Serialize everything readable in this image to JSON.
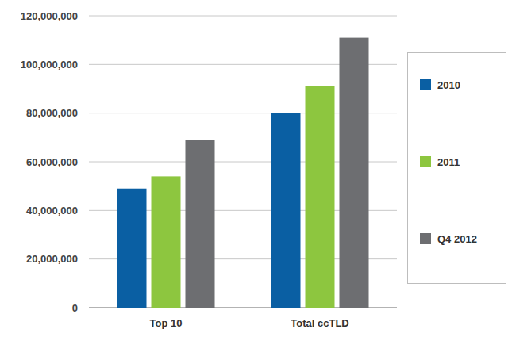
{
  "chart_data": {
    "type": "bar",
    "categories": [
      "Top 10",
      "Total ccTLD"
    ],
    "series": [
      {
        "name": "2010",
        "color": "#0a5fa3",
        "values": [
          49000000,
          80000000
        ]
      },
      {
        "name": "2011",
        "color": "#8dc63f",
        "values": [
          54000000,
          91000000
        ]
      },
      {
        "name": "Q4 2012",
        "color": "#6d6e71",
        "values": [
          69000000,
          111000000
        ]
      }
    ],
    "ylim": [
      0,
      120000000
    ],
    "yticks": [
      0,
      {
        "value": 20000000,
        "label": "20,000,000"
      },
      {
        "value": 40000000,
        "label": "40,000,000"
      },
      {
        "value": 60000000,
        "label": "60,000,000"
      },
      {
        "value": 80000000,
        "label": "80,000,000"
      },
      {
        "value": 100000000,
        "label": "100,000,000"
      },
      {
        "value": 120000000,
        "label": "120,000,000"
      }
    ],
    "grid": true,
    "legend": "right"
  }
}
